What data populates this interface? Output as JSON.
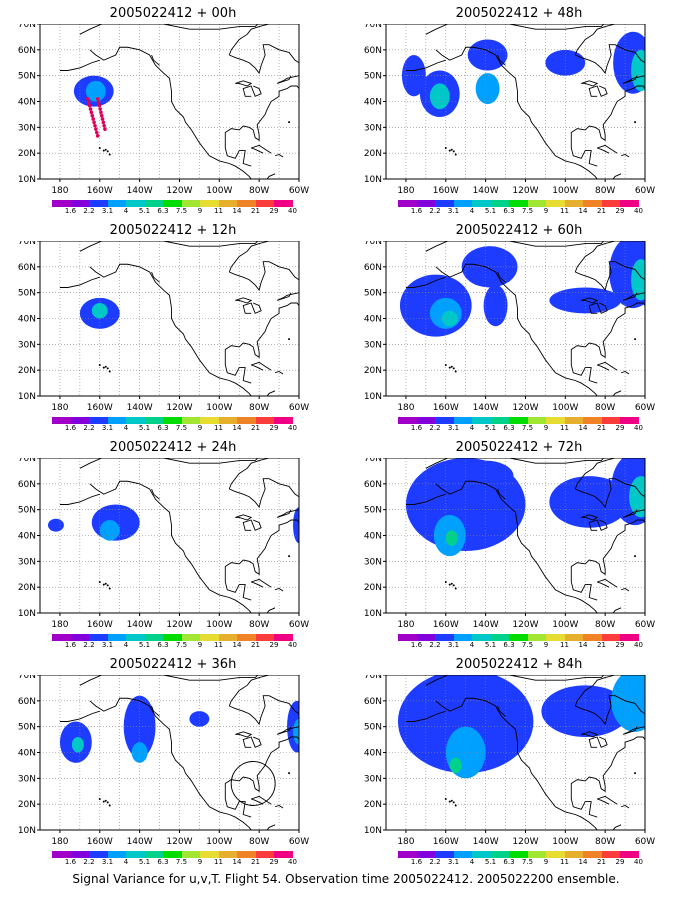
{
  "panels": [
    {
      "title": "2005022412 + 00h",
      "blobs": [
        {
          "lon": -163,
          "lat": 44,
          "rx": 10,
          "ry": 6,
          "level": 2
        },
        {
          "lon": -162,
          "lat": 44,
          "rx": 5,
          "ry": 4,
          "level": 3
        }
      ],
      "track": true
    },
    {
      "title": "2005022412 + 12h",
      "blobs": [
        {
          "lon": -160,
          "lat": 42,
          "rx": 10,
          "ry": 6,
          "level": 2
        },
        {
          "lon": -160,
          "lat": 43,
          "rx": 4,
          "ry": 3,
          "level": 4
        }
      ]
    },
    {
      "title": "2005022412 + 24h",
      "blobs": [
        {
          "lon": -182,
          "lat": 44,
          "rx": 4,
          "ry": 2.5,
          "level": 2
        },
        {
          "lon": -152,
          "lat": 45,
          "rx": 12,
          "ry": 7,
          "level": 2
        },
        {
          "lon": -155,
          "lat": 42,
          "rx": 5,
          "ry": 4,
          "level": 3
        },
        {
          "lon": -60,
          "lat": 44,
          "rx": 3,
          "ry": 7,
          "level": 2
        }
      ]
    },
    {
      "title": "2005022412 + 36h",
      "blobs": [
        {
          "lon": -172,
          "lat": 44,
          "rx": 8,
          "ry": 8,
          "level": 2
        },
        {
          "lon": -171,
          "lat": 43,
          "rx": 3,
          "ry": 3,
          "level": 4
        },
        {
          "lon": -140,
          "lat": 50,
          "rx": 8,
          "ry": 12,
          "level": 2
        },
        {
          "lon": -140,
          "lat": 40,
          "rx": 4,
          "ry": 4,
          "level": 3
        },
        {
          "lon": -110,
          "lat": 53,
          "rx": 5,
          "ry": 3,
          "level": 2
        },
        {
          "lon": -61,
          "lat": 50,
          "rx": 5,
          "ry": 10,
          "level": 2
        },
        {
          "lon": -60,
          "lat": 48,
          "rx": 3,
          "ry": 5,
          "level": 3
        }
      ]
    },
    {
      "title": "2005022412 + 48h",
      "blobs": [
        {
          "lon": -176,
          "lat": 50,
          "rx": 6,
          "ry": 8,
          "level": 2
        },
        {
          "lon": -163,
          "lat": 43,
          "rx": 10,
          "ry": 9,
          "level": 2
        },
        {
          "lon": -163,
          "lat": 42,
          "rx": 5,
          "ry": 5,
          "level": 4
        },
        {
          "lon": -139,
          "lat": 58,
          "rx": 10,
          "ry": 6,
          "level": 2
        },
        {
          "lon": -139,
          "lat": 45,
          "rx": 6,
          "ry": 6,
          "level": 3
        },
        {
          "lon": -100,
          "lat": 55,
          "rx": 10,
          "ry": 5,
          "level": 2
        },
        {
          "lon": -66,
          "lat": 55,
          "rx": 10,
          "ry": 12,
          "level": 2
        },
        {
          "lon": -62,
          "lat": 52,
          "rx": 5,
          "ry": 8,
          "level": 4
        }
      ]
    },
    {
      "title": "2005022412 + 60h",
      "blobs": [
        {
          "lon": -165,
          "lat": 45,
          "rx": 18,
          "ry": 12,
          "level": 2
        },
        {
          "lon": -160,
          "lat": 42,
          "rx": 8,
          "ry": 6,
          "level": 3
        },
        {
          "lon": -158,
          "lat": 40,
          "rx": 4,
          "ry": 3,
          "level": 4
        },
        {
          "lon": -138,
          "lat": 60,
          "rx": 14,
          "ry": 8,
          "level": 2
        },
        {
          "lon": -135,
          "lat": 45,
          "rx": 6,
          "ry": 8,
          "level": 2
        },
        {
          "lon": -90,
          "lat": 47,
          "rx": 18,
          "ry": 5,
          "level": 2
        },
        {
          "lon": -66,
          "lat": 58,
          "rx": 12,
          "ry": 14,
          "level": 2
        },
        {
          "lon": -62,
          "lat": 55,
          "rx": 5,
          "ry": 8,
          "level": 4
        }
      ]
    },
    {
      "title": "2005022412 + 72h",
      "blobs": [
        {
          "lon": -150,
          "lat": 52,
          "rx": 30,
          "ry": 18,
          "level": 2
        },
        {
          "lon": -158,
          "lat": 40,
          "rx": 8,
          "ry": 8,
          "level": 3
        },
        {
          "lon": -157,
          "lat": 39,
          "rx": 3,
          "ry": 3,
          "level": 5
        },
        {
          "lon": -140,
          "lat": 63,
          "rx": 14,
          "ry": 6,
          "level": 2
        },
        {
          "lon": -88,
          "lat": 53,
          "rx": 20,
          "ry": 10,
          "level": 2
        },
        {
          "lon": -65,
          "lat": 58,
          "rx": 12,
          "ry": 14,
          "level": 2
        },
        {
          "lon": -62,
          "lat": 55,
          "rx": 6,
          "ry": 8,
          "level": 4
        }
      ]
    },
    {
      "title": "2005022412 + 84h",
      "blobs": [
        {
          "lon": -150,
          "lat": 52,
          "rx": 34,
          "ry": 20,
          "level": 2
        },
        {
          "lon": -150,
          "lat": 40,
          "rx": 10,
          "ry": 10,
          "level": 3
        },
        {
          "lon": -155,
          "lat": 35,
          "rx": 3,
          "ry": 3,
          "level": 5
        },
        {
          "lon": -140,
          "lat": 62,
          "rx": 16,
          "ry": 6,
          "level": 2
        },
        {
          "lon": -90,
          "lat": 56,
          "rx": 22,
          "ry": 10,
          "level": 2
        },
        {
          "lon": -65,
          "lat": 60,
          "rx": 12,
          "ry": 12,
          "level": 3
        }
      ]
    }
  ],
  "x_ticks": [
    "180",
    "160W",
    "140W",
    "120W",
    "100W",
    "80W",
    "60W"
  ],
  "y_ticks": [
    "10N",
    "20N",
    "30N",
    "40N",
    "50N",
    "60N",
    "70N"
  ],
  "colorbar": {
    "labels": [
      "1.6",
      "2.2",
      "3.1",
      "4",
      "5.1",
      "6.3",
      "7.5",
      "9",
      "11",
      "14",
      "21",
      "29",
      "40"
    ],
    "colors": [
      "#a000c8",
      "#8200dc",
      "#1e3cff",
      "#00a0ff",
      "#00c8c8",
      "#00d28c",
      "#00dc00",
      "#a0e632",
      "#e6dc32",
      "#e6af2d",
      "#f08228",
      "#fa3c3c",
      "#f00082"
    ]
  },
  "footer": "Signal Variance for u,v,T. Flight 54. Observation time 2005022412. 2005022200 ensemble."
}
